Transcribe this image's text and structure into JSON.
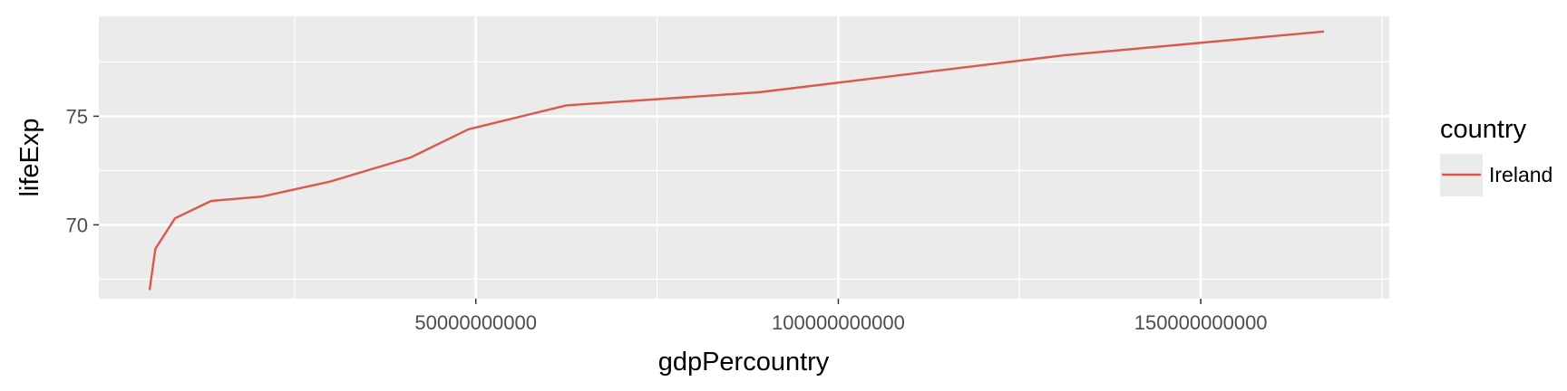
{
  "chart_data": {
    "type": "line",
    "title": "",
    "xlabel": "gdpPercountry",
    "ylabel": "lifeExp",
    "xlim": [
      -2000000000,
      176000000000
    ],
    "ylim": [
      66.6,
      79.6
    ],
    "x_ticks": [
      50000000000,
      100000000000,
      150000000000
    ],
    "x_tick_labels": [
      "50000000000",
      "100000000000",
      "150000000000"
    ],
    "y_ticks": [
      70,
      75
    ],
    "y_tick_labels": [
      "70",
      "75"
    ],
    "grid": true,
    "legend": {
      "title": "country",
      "position": "right",
      "entries": [
        {
          "label": "Ireland",
          "color": "#d9594c"
        }
      ]
    },
    "series": [
      {
        "name": "Ireland",
        "color": "#d9594c",
        "x": [
          5000000000,
          5800000000,
          8500000000,
          13500000000,
          20500000000,
          30000000000,
          41000000000,
          49000000000,
          62500000000,
          89000000000,
          131000000000,
          167000000000
        ],
        "y": [
          67.0,
          68.9,
          70.3,
          71.1,
          71.3,
          72.0,
          73.1,
          74.4,
          75.5,
          76.1,
          77.8,
          78.9
        ]
      }
    ]
  }
}
